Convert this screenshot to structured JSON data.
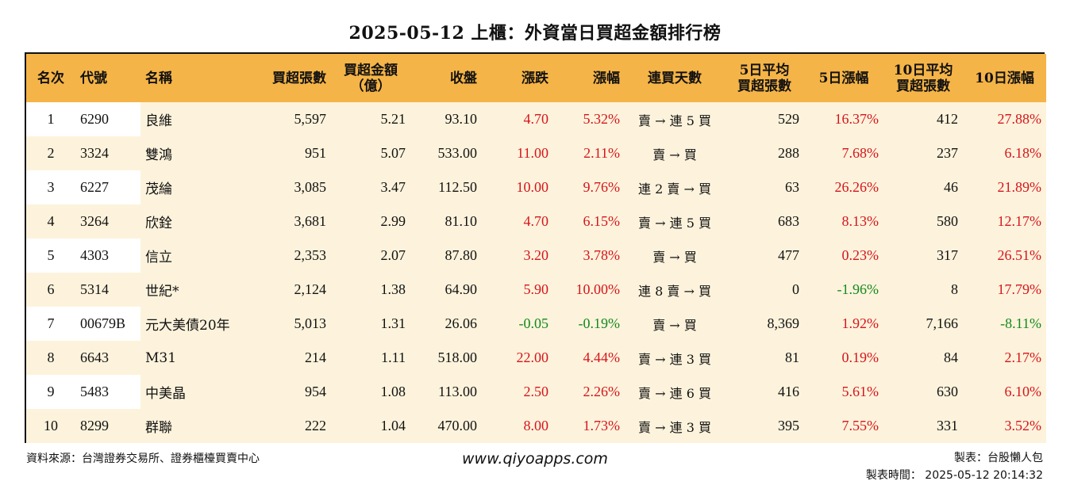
{
  "title": "2025-05-12 上櫃：外資當日買超金額排行榜",
  "chart_data": {
    "type": "table",
    "columns": [
      "名次",
      "代號",
      "名稱",
      "買超張數",
      "買超金額\n（億）",
      "收盤",
      "漲跌",
      "漲幅",
      "連買天數",
      "5日平均\n買超張數",
      "5日漲幅",
      "10日平均\n買超張數",
      "10日漲幅"
    ],
    "rows": [
      [
        "1",
        "6290",
        "良維",
        "5,597",
        "5.21",
        "93.10",
        "4.70",
        "5.32%",
        "賣 → 連 5 買",
        "529",
        "16.37%",
        "412",
        "27.88%"
      ],
      [
        "2",
        "3324",
        "雙鴻",
        "951",
        "5.07",
        "533.00",
        "11.00",
        "2.11%",
        "賣 → 買",
        "288",
        "7.68%",
        "237",
        "6.18%"
      ],
      [
        "3",
        "6227",
        "茂綸",
        "3,085",
        "3.47",
        "112.50",
        "10.00",
        "9.76%",
        "連 2 賣 → 買",
        "63",
        "26.26%",
        "46",
        "21.89%"
      ],
      [
        "4",
        "3264",
        "欣銓",
        "3,681",
        "2.99",
        "81.10",
        "4.70",
        "6.15%",
        "賣 → 連 5 買",
        "683",
        "8.13%",
        "580",
        "12.17%"
      ],
      [
        "5",
        "4303",
        "信立",
        "2,353",
        "2.07",
        "87.80",
        "3.20",
        "3.78%",
        "賣 → 買",
        "477",
        "0.23%",
        "317",
        "26.51%"
      ],
      [
        "6",
        "5314",
        "世紀*",
        "2,124",
        "1.38",
        "64.90",
        "5.90",
        "10.00%",
        "連 8 賣 → 買",
        "0",
        "-1.96%",
        "8",
        "17.79%"
      ],
      [
        "7",
        "00679B",
        "元大美債20年",
        "5,013",
        "1.31",
        "26.06",
        "-0.05",
        "-0.19%",
        "賣 → 買",
        "8,369",
        "1.92%",
        "7,166",
        "-8.11%"
      ],
      [
        "8",
        "6643",
        "M31",
        "214",
        "1.11",
        "518.00",
        "22.00",
        "4.44%",
        "賣 → 連 3 買",
        "81",
        "0.19%",
        "84",
        "2.17%"
      ],
      [
        "9",
        "5483",
        "中美晶",
        "954",
        "1.08",
        "113.00",
        "2.50",
        "2.26%",
        "賣 → 連 6 買",
        "416",
        "5.61%",
        "630",
        "6.10%"
      ],
      [
        "10",
        "8299",
        "群聯",
        "222",
        "1.04",
        "470.00",
        "8.00",
        "1.73%",
        "賣 → 連 3 買",
        "395",
        "7.55%",
        "331",
        "3.52%"
      ]
    ]
  },
  "footer": {
    "source": "資料來源：台灣證券交易所、證券櫃檯買賣中心",
    "website": "www.qiyoapps.com",
    "maker": "製表：台股懶人包",
    "made_time": "製表時間： 2025-05-12 20:14:32"
  },
  "colors": {
    "header_bg": "#f5b447",
    "row_shade": "#fdf3dc",
    "positive": "#d6141c",
    "negative": "#13891c"
  }
}
